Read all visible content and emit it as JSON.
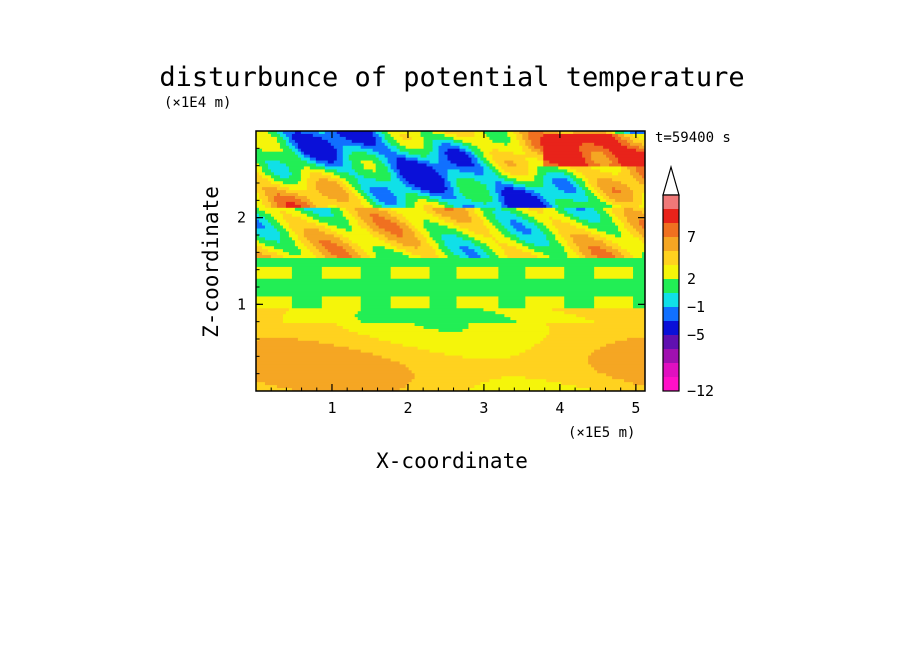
{
  "chart_data": {
    "type": "heatmap",
    "title": "disturbunce of potential temperature",
    "xlabel": "X-coordinate",
    "ylabel": "Z-coordinate",
    "x_unit": "(×1E5 m)",
    "y_unit": "(×1E4 m)",
    "time_label": "t=59400 s",
    "xlim": [
      0,
      5.12
    ],
    "ylim": [
      0,
      3.0
    ],
    "x_ticks": [
      1,
      2,
      3,
      4,
      5
    ],
    "y_ticks": [
      1,
      2
    ],
    "colorbar": {
      "tick_labels": [
        "7",
        "2",
        "−1",
        "−5",
        "−12"
      ],
      "levels_top_to_bottom": [
        {
          "color": "#f4b8b8"
        },
        {
          "color": "#f07878"
        },
        {
          "color": "#e8231a"
        },
        {
          "color": "#f07020"
        },
        {
          "color": "#f5a623"
        },
        {
          "color": "#ffd21f"
        },
        {
          "color": "#f5f50a"
        },
        {
          "color": "#22ee55"
        },
        {
          "color": "#10e0e8"
        },
        {
          "color": "#1070ff"
        },
        {
          "color": "#0a10d8"
        },
        {
          "color": "#6010b0"
        },
        {
          "color": "#a010b0"
        },
        {
          "color": "#e010c0"
        },
        {
          "color": "#ff10c8"
        }
      ]
    },
    "bands": [
      {
        "z_range": [
          0.0,
          0.95
        ],
        "dominant": "yellow/orange",
        "color": "#ffd21f"
      },
      {
        "z_range": [
          0.95,
          1.55
        ],
        "dominant": "green",
        "color": "#22ee55"
      },
      {
        "z_range": [
          1.55,
          2.1
        ],
        "dominant": "yellow/cyan/blue",
        "color": "#f5f50a"
      },
      {
        "z_range": [
          2.1,
          3.0
        ],
        "dominant": "mixed green/cyan/blue/orange",
        "color": "#22ee55"
      }
    ]
  }
}
